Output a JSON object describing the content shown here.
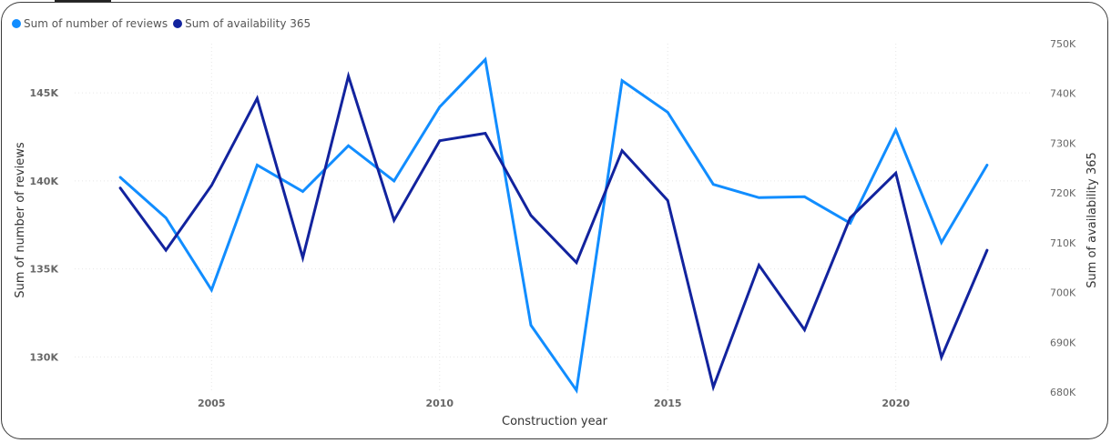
{
  "chart_data": {
    "type": "line",
    "title": "",
    "xlabel": "Construction year",
    "ylabel_left": "Sum of number of reviews",
    "ylabel_right": "Sum of availability 365",
    "x": [
      2003,
      2004,
      2005,
      2006,
      2007,
      2008,
      2009,
      2010,
      2011,
      2012,
      2013,
      2014,
      2015,
      2016,
      2017,
      2018,
      2019,
      2020,
      2021,
      2022
    ],
    "x_ticks": [
      2005,
      2010,
      2015,
      2020
    ],
    "x_tick_labels": [
      "2005",
      "2010",
      "2015",
      "2020"
    ],
    "xlim": [
      2002.0,
      2023.0
    ],
    "y_left_ticks": [
      130000,
      135000,
      140000,
      145000
    ],
    "y_left_tick_labels": [
      "130K",
      "135K",
      "140K",
      "145K"
    ],
    "ylim_left": [
      128000,
      147800
    ],
    "y_right_ticks": [
      680000,
      690000,
      700000,
      710000,
      720000,
      730000,
      740000,
      750000
    ],
    "y_right_tick_labels": [
      "680K",
      "690K",
      "700K",
      "710K",
      "720K",
      "730K",
      "740K",
      "750K"
    ],
    "ylim_right": [
      680000,
      750000
    ],
    "grid": true,
    "legend_position": "top-left",
    "series": [
      {
        "name": "Sum of number of reviews",
        "axis": "left",
        "color": "#118DFF",
        "values": [
          140200,
          137900,
          133800,
          140900,
          139400,
          142000,
          140000,
          144200,
          146900,
          131800,
          128100,
          145700,
          143900,
          139800,
          139050,
          139100,
          137600,
          142900,
          136500,
          140900
        ]
      },
      {
        "name": "Sum of availability 365",
        "axis": "right",
        "color": "#12239E",
        "values": [
          721000,
          708500,
          721500,
          739000,
          707000,
          743500,
          714500,
          730500,
          732000,
          715500,
          706000,
          728500,
          718500,
          681000,
          705500,
          692500,
          715000,
          724000,
          687000,
          708500
        ]
      }
    ]
  }
}
